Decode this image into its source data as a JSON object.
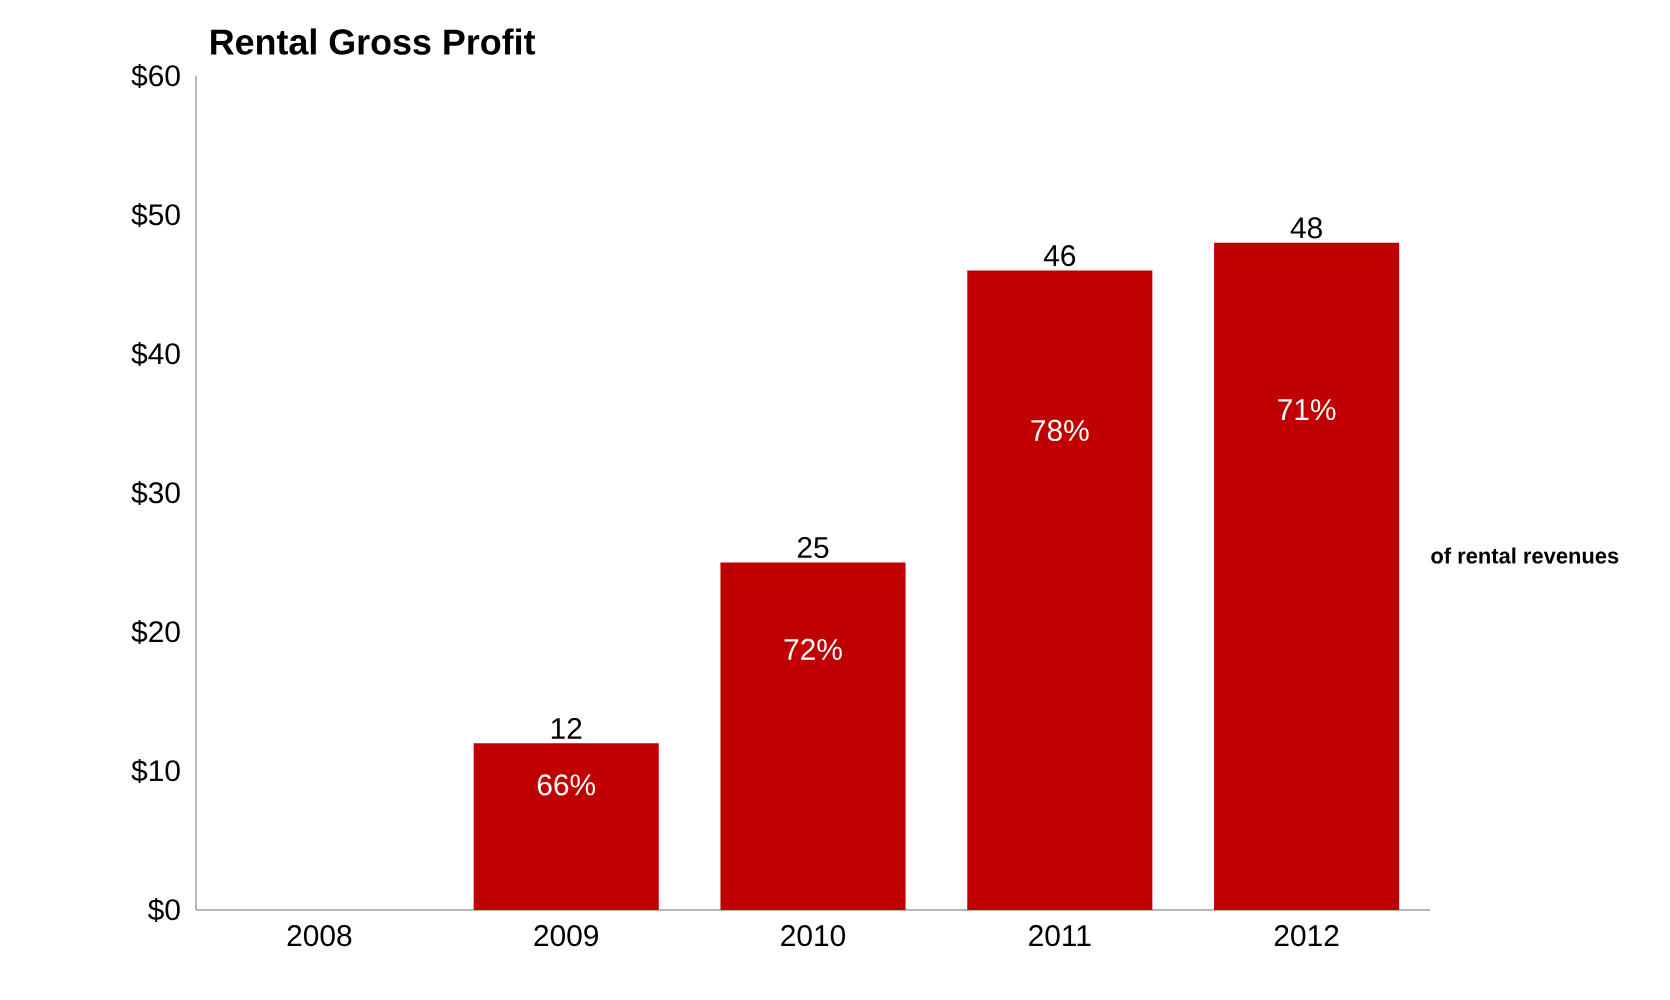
{
  "chart_data": {
    "type": "bar",
    "title": "Rental Gross Profit",
    "categories": [
      "2008",
      "2009",
      "2010",
      "2011",
      "2012"
    ],
    "values": [
      null,
      12,
      25,
      46,
      48
    ],
    "color": "#c00000",
    "data_labels": true,
    "ylim": [
      0,
      60
    ],
    "yticks": [
      {
        "value": 0,
        "label": "$0"
      },
      {
        "value": 10,
        "label": "$10"
      },
      {
        "value": 20,
        "label": "$20"
      },
      {
        "value": 30,
        "label": "$30"
      },
      {
        "value": 40,
        "label": "$40"
      },
      {
        "value": 50,
        "label": "$50"
      },
      {
        "value": 60,
        "label": "$60"
      }
    ],
    "grid": false,
    "annotations": [
      "66%",
      "72%",
      "78%",
      "71%",
      "of rental revenues"
    ]
  }
}
